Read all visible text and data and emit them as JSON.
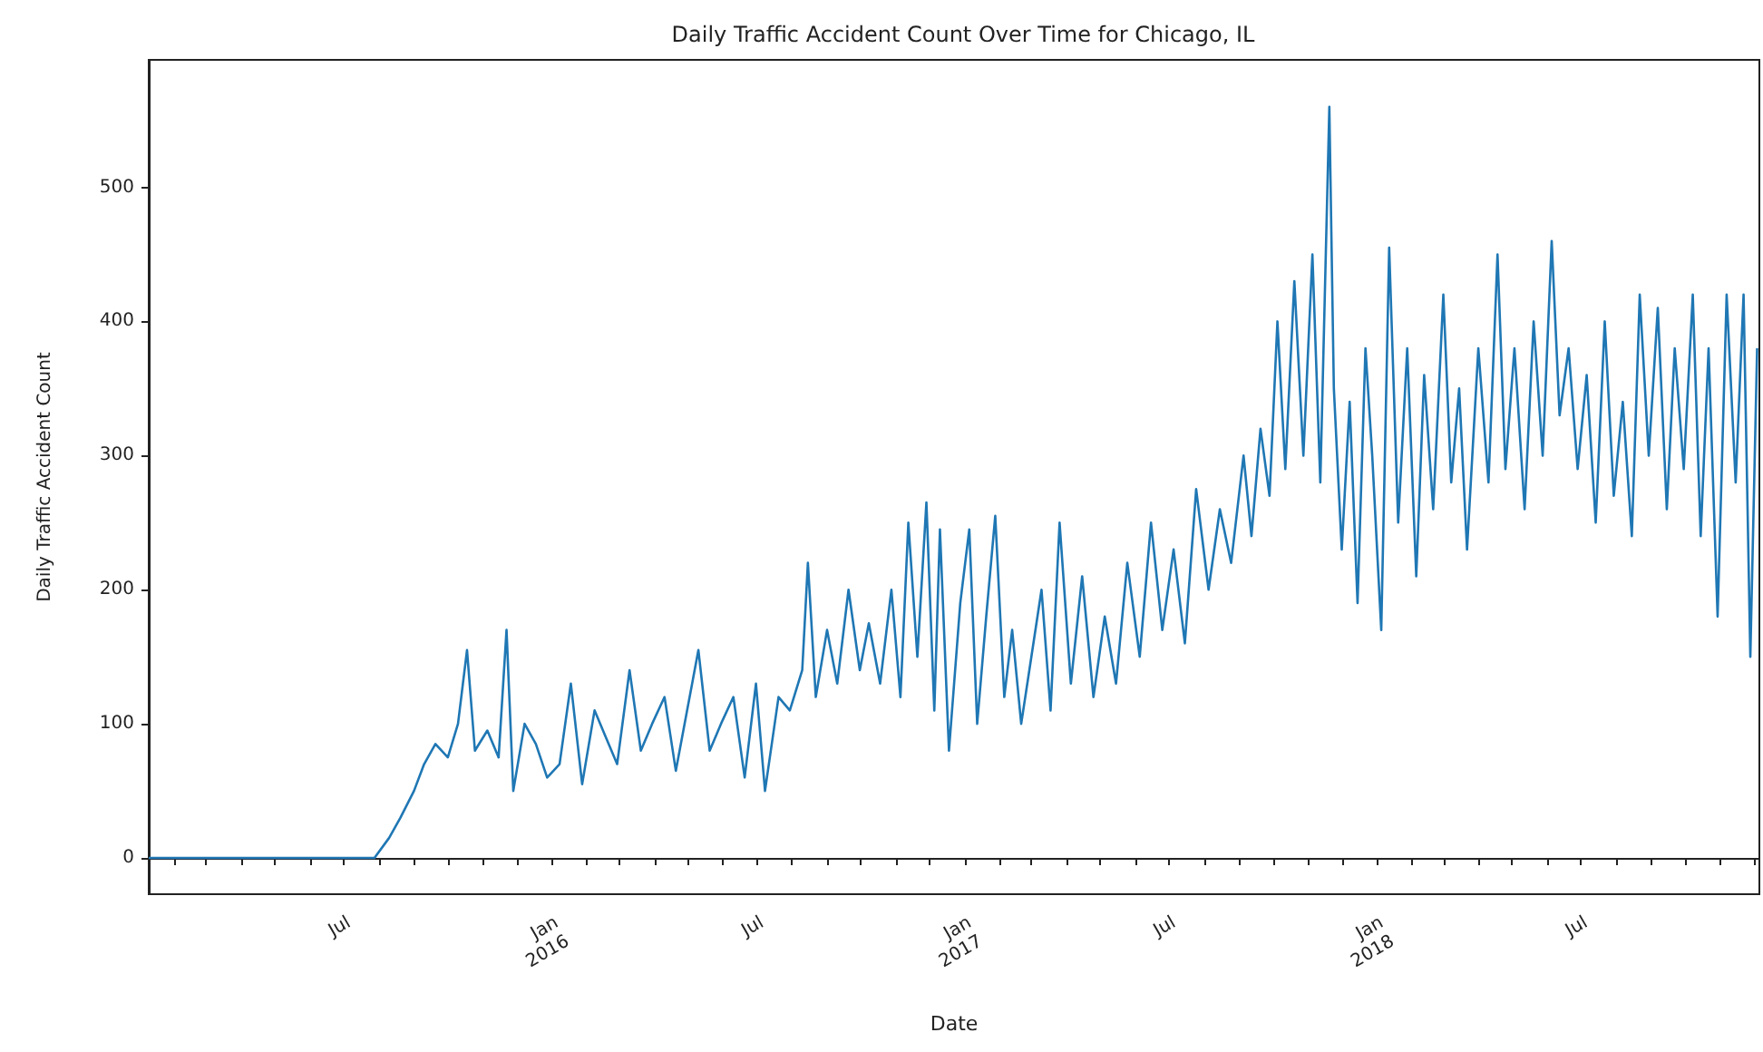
{
  "chart_data": {
    "type": "line",
    "title": "Daily Traffic Accident Count Over Time for Chicago, IL",
    "xlabel": "Date",
    "ylabel": "Daily Traffic Accident Count",
    "xlim": [
      "2015-01-09",
      "2018-12-06"
    ],
    "xticks": [
      {
        "value": "2015-02-01",
        "label": null
      },
      {
        "value": "2015-03-01",
        "label": null
      },
      {
        "value": "2015-04-01",
        "label": null
      },
      {
        "value": "2015-05-01",
        "label": null
      },
      {
        "value": "2015-06-01",
        "label": null
      },
      {
        "value": "2015-07-01",
        "label": "Jul"
      },
      {
        "value": "2015-08-01",
        "label": null
      },
      {
        "value": "2015-09-01",
        "label": null
      },
      {
        "value": "2015-10-01",
        "label": null
      },
      {
        "value": "2015-11-01",
        "label": null
      },
      {
        "value": "2015-12-01",
        "label": null
      },
      {
        "value": "2016-01-01",
        "label": "Jan\n2016"
      },
      {
        "value": "2016-02-01",
        "label": null
      },
      {
        "value": "2016-03-01",
        "label": null
      },
      {
        "value": "2016-04-01",
        "label": null
      },
      {
        "value": "2016-05-01",
        "label": null
      },
      {
        "value": "2016-06-01",
        "label": null
      },
      {
        "value": "2016-07-01",
        "label": "Jul"
      },
      {
        "value": "2016-08-01",
        "label": null
      },
      {
        "value": "2016-09-01",
        "label": null
      },
      {
        "value": "2016-10-01",
        "label": null
      },
      {
        "value": "2016-11-01",
        "label": null
      },
      {
        "value": "2016-12-01",
        "label": null
      },
      {
        "value": "2017-01-01",
        "label": "Jan\n2017"
      },
      {
        "value": "2017-02-01",
        "label": null
      },
      {
        "value": "2017-03-01",
        "label": null
      },
      {
        "value": "2017-04-01",
        "label": null
      },
      {
        "value": "2017-05-01",
        "label": null
      },
      {
        "value": "2017-06-01",
        "label": null
      },
      {
        "value": "2017-07-01",
        "label": "Jul"
      },
      {
        "value": "2017-08-01",
        "label": null
      },
      {
        "value": "2017-09-01",
        "label": null
      },
      {
        "value": "2017-10-01",
        "label": null
      },
      {
        "value": "2017-11-01",
        "label": null
      },
      {
        "value": "2017-12-01",
        "label": null
      },
      {
        "value": "2018-01-01",
        "label": "Jan\n2018"
      },
      {
        "value": "2018-02-01",
        "label": null
      },
      {
        "value": "2018-03-01",
        "label": null
      },
      {
        "value": "2018-04-01",
        "label": null
      },
      {
        "value": "2018-05-01",
        "label": null
      },
      {
        "value": "2018-06-01",
        "label": null
      },
      {
        "value": "2018-07-01",
        "label": "Jul"
      },
      {
        "value": "2018-08-01",
        "label": null
      },
      {
        "value": "2018-09-01",
        "label": null
      },
      {
        "value": "2018-10-01",
        "label": null
      },
      {
        "value": "2018-11-01",
        "label": null
      },
      {
        "value": "2018-12-01",
        "label": null
      }
    ],
    "ylim": [
      -27,
      595
    ],
    "yticks": [
      0,
      100,
      200,
      300,
      400,
      500
    ],
    "marker": "none",
    "line_style": "solid",
    "x": [
      "2015-01-09",
      "2015-07-28",
      "2015-08-10",
      "2015-08-20",
      "2015-09-01",
      "2015-09-10",
      "2015-09-20",
      "2015-10-01",
      "2015-10-10",
      "2015-10-18",
      "2015-10-25",
      "2015-11-05",
      "2015-11-15",
      "2015-11-22",
      "2015-11-28",
      "2015-12-08",
      "2015-12-18",
      "2015-12-28",
      "2016-01-08",
      "2016-01-18",
      "2016-01-28",
      "2016-02-08",
      "2016-02-18",
      "2016-02-28",
      "2016-03-10",
      "2016-03-20",
      "2016-03-30",
      "2016-04-10",
      "2016-04-20",
      "2016-04-30",
      "2016-05-10",
      "2016-05-20",
      "2016-05-30",
      "2016-06-10",
      "2016-06-20",
      "2016-06-30",
      "2016-07-08",
      "2016-07-20",
      "2016-07-30",
      "2016-08-10",
      "2016-08-15",
      "2016-08-22",
      "2016-09-01",
      "2016-09-10",
      "2016-09-20",
      "2016-09-30",
      "2016-10-08",
      "2016-10-18",
      "2016-10-28",
      "2016-11-05",
      "2016-11-12",
      "2016-11-20",
      "2016-11-28",
      "2016-12-05",
      "2016-12-10",
      "2016-12-18",
      "2016-12-28",
      "2017-01-05",
      "2017-01-12",
      "2017-01-20",
      "2017-01-28",
      "2017-02-05",
      "2017-02-12",
      "2017-02-20",
      "2017-03-01",
      "2017-03-10",
      "2017-03-18",
      "2017-03-26",
      "2017-04-05",
      "2017-04-15",
      "2017-04-25",
      "2017-05-05",
      "2017-05-15",
      "2017-05-25",
      "2017-06-05",
      "2017-06-15",
      "2017-06-25",
      "2017-07-05",
      "2017-07-15",
      "2017-07-25",
      "2017-08-05",
      "2017-08-15",
      "2017-08-25",
      "2017-09-05",
      "2017-09-12",
      "2017-09-20",
      "2017-09-28",
      "2017-10-05",
      "2017-10-12",
      "2017-10-20",
      "2017-10-28",
      "2017-11-05",
      "2017-11-12",
      "2017-11-20",
      "2017-11-24",
      "2017-12-01",
      "2017-12-08",
      "2017-12-15",
      "2017-12-22",
      "2017-12-28",
      "2018-01-05",
      "2018-01-12",
      "2018-01-20",
      "2018-01-28",
      "2018-02-05",
      "2018-02-12",
      "2018-02-20",
      "2018-03-01",
      "2018-03-08",
      "2018-03-15",
      "2018-03-22",
      "2018-04-01",
      "2018-04-10",
      "2018-04-18",
      "2018-04-25",
      "2018-05-03",
      "2018-05-12",
      "2018-05-20",
      "2018-05-28",
      "2018-06-05",
      "2018-06-12",
      "2018-06-20",
      "2018-06-28",
      "2018-07-06",
      "2018-07-14",
      "2018-07-22",
      "2018-07-30",
      "2018-08-07",
      "2018-08-15",
      "2018-08-22",
      "2018-08-30",
      "2018-09-07",
      "2018-09-15",
      "2018-09-22",
      "2018-09-30",
      "2018-10-08",
      "2018-10-15",
      "2018-10-22",
      "2018-10-30",
      "2018-11-07",
      "2018-11-15",
      "2018-11-22",
      "2018-11-28",
      "2018-12-04"
    ],
    "series": [
      {
        "color": "#1f77b4",
        "values": [
          0,
          0,
          15,
          30,
          50,
          70,
          85,
          75,
          100,
          155,
          80,
          95,
          75,
          170,
          50,
          100,
          85,
          60,
          70,
          130,
          55,
          110,
          90,
          70,
          140,
          80,
          100,
          120,
          65,
          110,
          155,
          80,
          100,
          120,
          60,
          130,
          50,
          120,
          110,
          140,
          220,
          120,
          170,
          130,
          200,
          140,
          175,
          130,
          200,
          120,
          250,
          150,
          265,
          110,
          245,
          80,
          190,
          245,
          100,
          180,
          255,
          120,
          170,
          100,
          150,
          200,
          110,
          250,
          130,
          210,
          120,
          180,
          130,
          220,
          150,
          250,
          170,
          230,
          160,
          275,
          200,
          260,
          220,
          300,
          240,
          320,
          270,
          400,
          290,
          430,
          300,
          450,
          280,
          560,
          350,
          230,
          340,
          190,
          380,
          300,
          170,
          455,
          250,
          380,
          210,
          360,
          260,
          420,
          280,
          350,
          230,
          380,
          280,
          450,
          290,
          380,
          260,
          400,
          300,
          460,
          330,
          380,
          290,
          360,
          250,
          400,
          270,
          340,
          240,
          420,
          300,
          410,
          260,
          380,
          290,
          420,
          240,
          380,
          180,
          420,
          280,
          420,
          150,
          380
        ]
      }
    ]
  }
}
